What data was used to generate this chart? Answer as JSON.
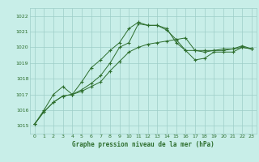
{
  "xlabel": "Graphe pression niveau de la mer (hPa)",
  "ylabel": "",
  "bg_color": "#c8eee8",
  "grid_color": "#9ecec8",
  "line_color": "#2d6e2d",
  "text_color": "#2d6e2d",
  "ylim": [
    1014.5,
    1022.5
  ],
  "xlim": [
    -0.5,
    23.5
  ],
  "yticks": [
    1015,
    1016,
    1017,
    1018,
    1019,
    1020,
    1021,
    1022
  ],
  "xticks": [
    0,
    1,
    2,
    3,
    4,
    5,
    6,
    7,
    8,
    9,
    10,
    11,
    12,
    13,
    14,
    15,
    16,
    17,
    18,
    19,
    20,
    21,
    22,
    23
  ],
  "line1": [
    1015.1,
    1015.9,
    1016.5,
    1016.9,
    1017.0,
    1017.2,
    1017.5,
    1017.8,
    1018.5,
    1019.1,
    1019.7,
    1020.0,
    1020.2,
    1020.3,
    1020.4,
    1020.5,
    1020.6,
    1019.8,
    1019.8,
    1019.8,
    1019.9,
    1019.9,
    1020.0,
    1019.9
  ],
  "line2": [
    1015.1,
    1015.9,
    1016.5,
    1016.9,
    1017.0,
    1017.3,
    1017.7,
    1018.2,
    1019.0,
    1020.0,
    1020.3,
    1021.5,
    1021.4,
    1021.4,
    1021.2,
    1020.3,
    1019.8,
    1019.8,
    1019.7,
    1019.8,
    1019.8,
    1019.9,
    1020.1,
    1019.9
  ],
  "line3": [
    1015.1,
    1016.0,
    1017.0,
    1017.5,
    1017.0,
    1017.8,
    1018.7,
    1019.2,
    1019.8,
    1020.3,
    1021.2,
    1021.6,
    1021.4,
    1021.4,
    1021.1,
    1020.5,
    1019.8,
    1019.2,
    1019.3,
    1019.7,
    1019.7,
    1019.7,
    1020.0,
    1019.9
  ]
}
